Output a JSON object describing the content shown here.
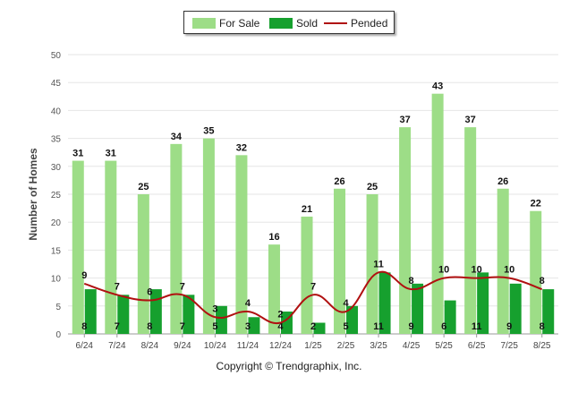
{
  "chart_data": {
    "type": "bar",
    "categories": [
      "6/24",
      "7/24",
      "8/24",
      "9/24",
      "10/24",
      "11/24",
      "12/24",
      "1/25",
      "2/25",
      "3/25",
      "4/25",
      "5/25",
      "6/25",
      "7/25",
      "8/25"
    ],
    "series": [
      {
        "name": "For Sale",
        "type": "bar",
        "color": "#9ddd87",
        "values": [
          31,
          31,
          25,
          34,
          35,
          32,
          16,
          21,
          26,
          25,
          37,
          43,
          37,
          26,
          22
        ]
      },
      {
        "name": "Sold",
        "type": "bar",
        "color": "#16a02e",
        "values": [
          8,
          7,
          8,
          7,
          5,
          3,
          4,
          2,
          5,
          11,
          9,
          6,
          11,
          9,
          8
        ]
      },
      {
        "name": "Pended",
        "type": "line",
        "color": "#b01010",
        "values": [
          9,
          7,
          6,
          7,
          3,
          4,
          2,
          7,
          4,
          11,
          8,
          10,
          10,
          10,
          8
        ]
      }
    ],
    "ylabel": "Number of Homes",
    "ylim": [
      0,
      50
    ],
    "yticks": [
      0,
      5,
      10,
      15,
      20,
      25,
      30,
      35,
      40,
      45,
      50
    ],
    "legend": "top-center",
    "grid": true
  },
  "footer": {
    "copyright": "Copyright © Trendgraphix, Inc."
  }
}
